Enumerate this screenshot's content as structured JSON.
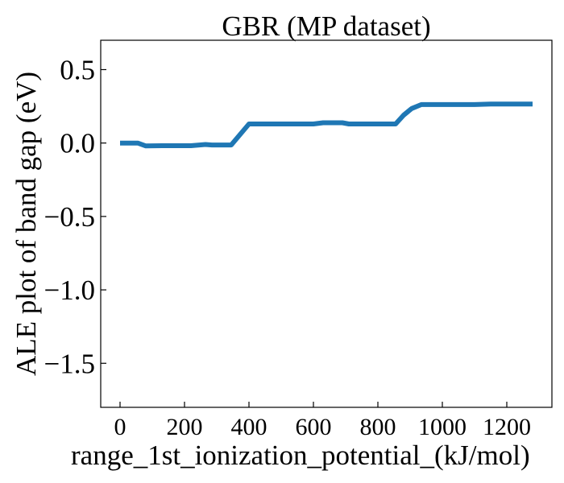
{
  "chart_data": {
    "type": "line",
    "title": "GBR (MP dataset)",
    "xlabel": "range_1st_ionization_potential_(kJ/mol)",
    "ylabel": "ALE plot of band gap (eV)",
    "xlim": [
      -60,
      1340
    ],
    "ylim": [
      -1.8,
      0.7
    ],
    "xticks": [
      0,
      200,
      400,
      600,
      800,
      1000,
      1200
    ],
    "yticks": [
      0.5,
      0.0,
      -0.5,
      -1.0,
      -1.5
    ],
    "xtick_labels": [
      "0",
      "200",
      "400",
      "600",
      "800",
      "1000",
      "1200"
    ],
    "ytick_labels": [
      "0.5",
      "0.0",
      "−0.5",
      "−1.0",
      "−1.5"
    ],
    "grid": false,
    "legend": "none",
    "series": [
      {
        "color": "#1f77b4",
        "x": [
          0,
          55,
          80,
          130,
          220,
          265,
          285,
          345,
          400,
          600,
          630,
          690,
          710,
          855,
          880,
          905,
          935,
          1100,
          1150,
          1280
        ],
        "y": [
          0.0,
          0.0,
          -0.02,
          -0.018,
          -0.018,
          -0.01,
          -0.013,
          -0.013,
          0.13,
          0.13,
          0.138,
          0.138,
          0.13,
          0.13,
          0.19,
          0.235,
          0.262,
          0.262,
          0.265,
          0.265
        ]
      }
    ]
  }
}
